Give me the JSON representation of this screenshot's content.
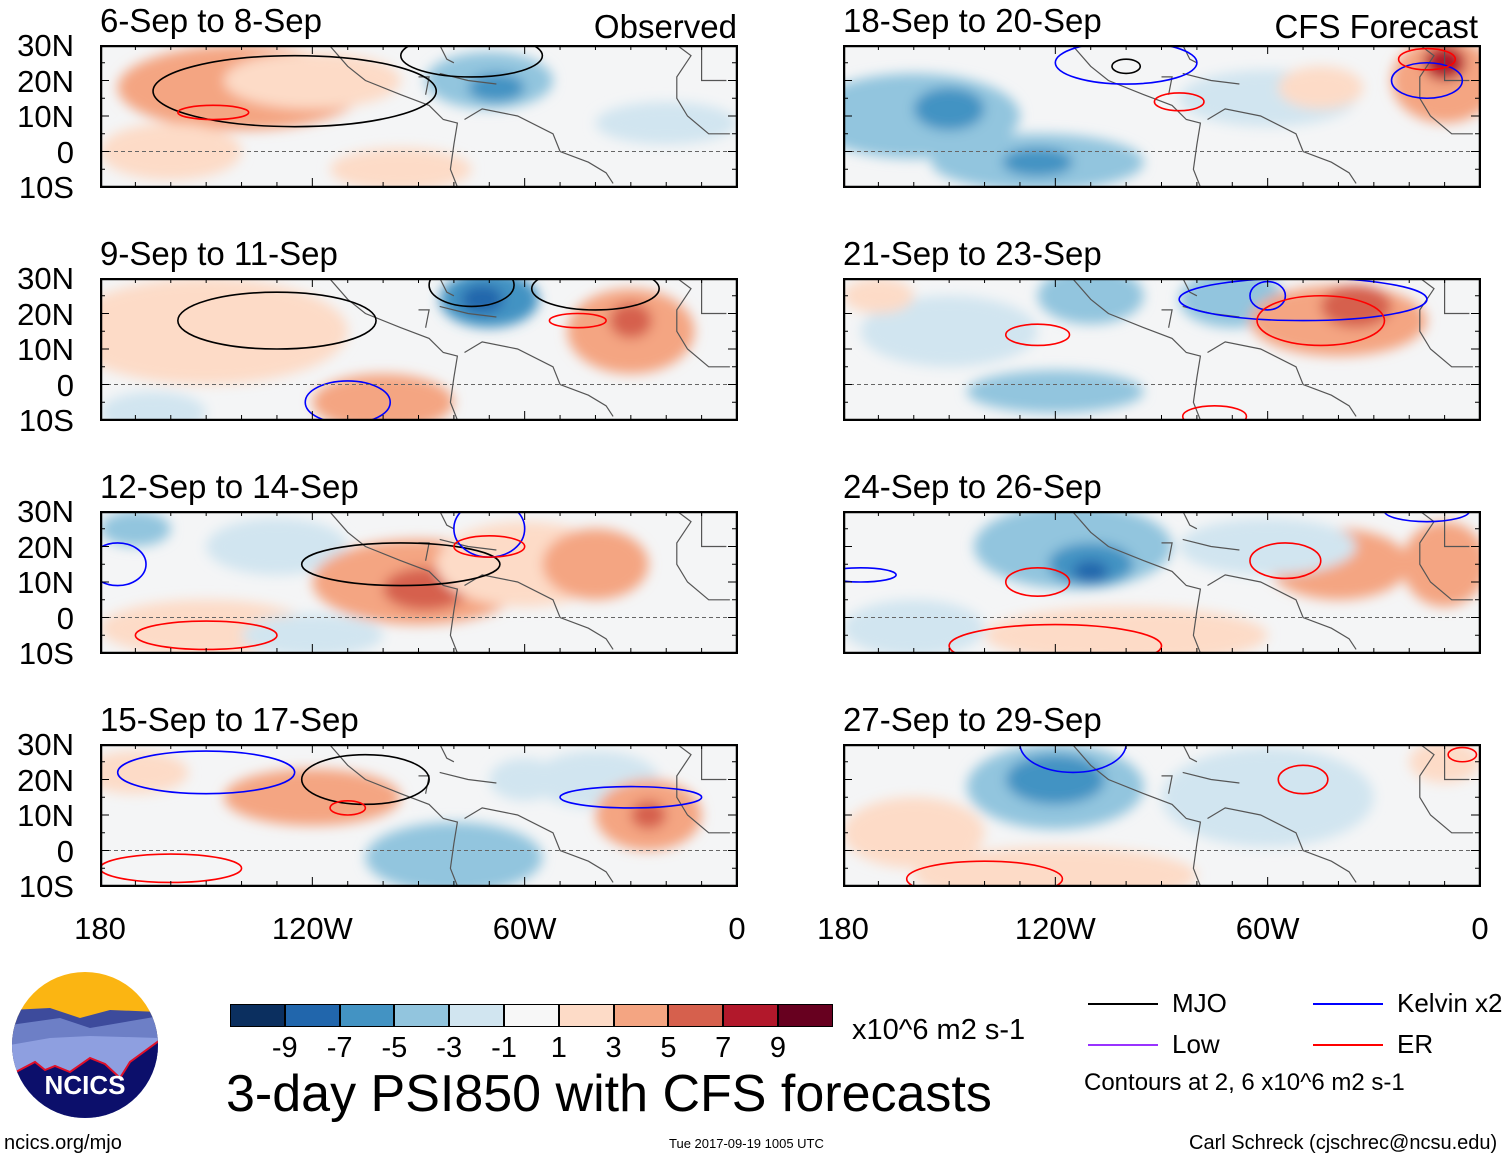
{
  "title": "3-day PSI850 with CFS forecasts",
  "timestamp": "Tue 2017-09-19 1005 UTC",
  "site": "ncics.org/mjo",
  "credit": "Carl Schreck (cjschrec@ncsu.edu)",
  "logo_text": "NCICS",
  "observed_label": "Observed",
  "forecast_label": "CFS Forecast",
  "lat_labels": [
    "30N",
    "20N",
    "10N",
    "0",
    "10S"
  ],
  "lon_labels": [
    "180",
    "120W",
    "60W",
    "0"
  ],
  "panels_observed": [
    {
      "title": "6-Sep to 8-Sep"
    },
    {
      "title": "9-Sep to 11-Sep"
    },
    {
      "title": "12-Sep to 14-Sep"
    },
    {
      "title": "15-Sep to 17-Sep"
    }
  ],
  "panels_forecast": [
    {
      "title": "18-Sep to 20-Sep"
    },
    {
      "title": "21-Sep to 23-Sep"
    },
    {
      "title": "24-Sep to 26-Sep"
    },
    {
      "title": "27-Sep to 29-Sep"
    }
  ],
  "colorbar": {
    "units": "x10^6 m2 s-1",
    "ticks": [
      "-9",
      "-7",
      "-5",
      "-3",
      "-1",
      "1",
      "3",
      "5",
      "7",
      "9"
    ],
    "colors": [
      "#0b2f5f",
      "#2166ac",
      "#4393c3",
      "#92c5de",
      "#d1e5f0",
      "#f7f7f7",
      "#fddbc7",
      "#f4a582",
      "#d6604d",
      "#b2182b",
      "#67001f"
    ]
  },
  "legend": {
    "items": [
      {
        "label": "MJO",
        "color": "#000000"
      },
      {
        "label": "Kelvin x2",
        "color": "#0000ff"
      },
      {
        "label": "Low",
        "color": "#9933ff"
      },
      {
        "label": "ER",
        "color": "#ff0000"
      }
    ],
    "contours_note": "Contours at 2, 6 x10^6 m2 s-1"
  }
}
